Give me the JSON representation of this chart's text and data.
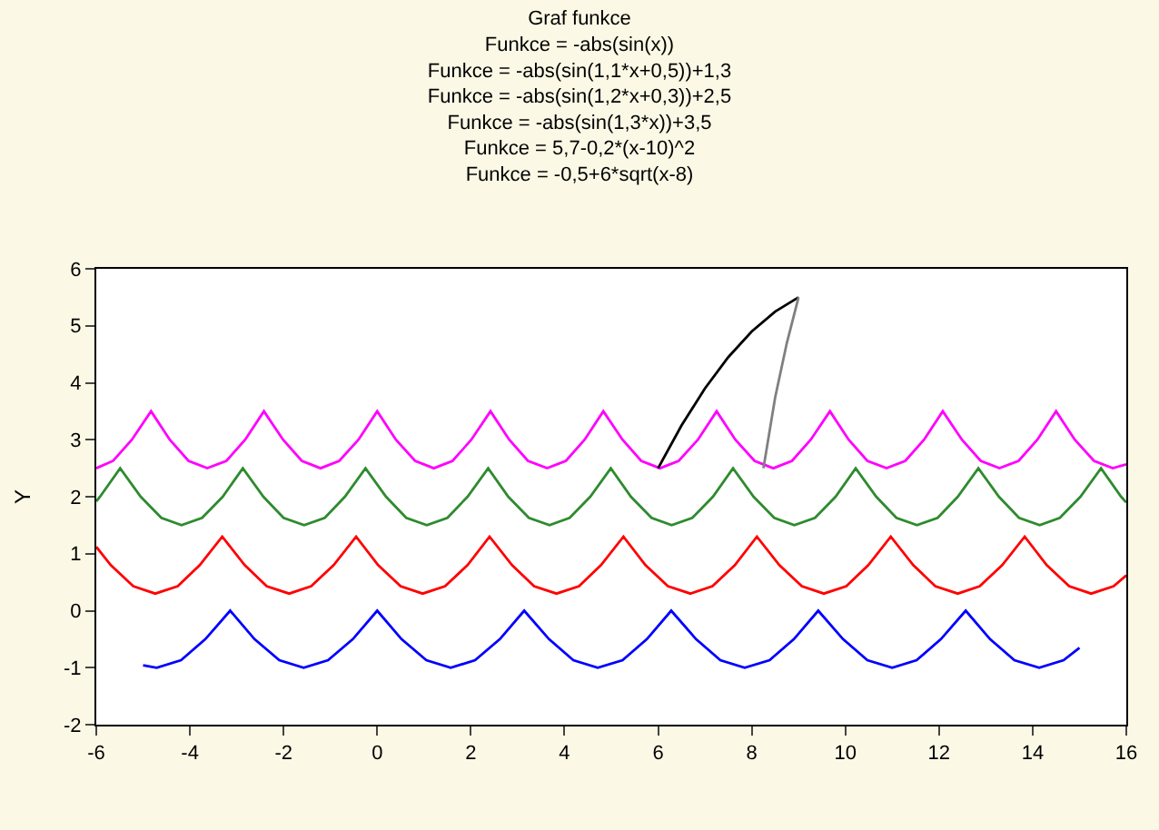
{
  "chart_data": {
    "type": "line",
    "title": "Graf funkce",
    "subtitle": "Funkce = -abs(sin(x))\nFunkce = -abs(sin(1,1*x+0,5))+1,3\nFunkce = -abs(sin(1,2*x+0,3))+2,5\nFunkce = -abs(sin(1,3*x))+3,5\nFunkce = 5,7-0,2*(x-10)^2\nFunkce = -0,5+6*sqrt(x-8)",
    "ylabel": "Y",
    "xlim": [
      -6,
      16
    ],
    "xticks": [
      -6,
      -4,
      -2,
      0,
      2,
      4,
      6,
      8,
      10,
      12,
      14,
      16
    ],
    "ylim": [
      -2,
      6
    ],
    "yticks": [
      -2,
      -1,
      0,
      1,
      2,
      3,
      4,
      5,
      6
    ],
    "marker": "none",
    "line_style": "solid",
    "series": [
      {
        "color": "#0000ff",
        "x": [
          -5,
          -4.71,
          -4.19,
          -3.67,
          -3.14,
          -2.62,
          -2.09,
          -1.57,
          -1.05,
          -0.52,
          0,
          0.52,
          1.05,
          1.57,
          2.09,
          2.62,
          3.14,
          3.67,
          4.19,
          4.71,
          5.24,
          5.76,
          6.28,
          6.81,
          7.33,
          7.85,
          8.38,
          8.9,
          9.42,
          9.95,
          10.47,
          11.0,
          11.52,
          12.04,
          12.57,
          13.09,
          13.61,
          14.14,
          14.66,
          15
        ],
        "values": [
          -0.96,
          -1,
          -0.87,
          -0.5,
          0,
          -0.5,
          -0.87,
          -1,
          -0.87,
          -0.5,
          0,
          -0.5,
          -0.87,
          -1,
          -0.87,
          -0.5,
          0,
          -0.5,
          -0.87,
          -1,
          -0.87,
          -0.5,
          0,
          -0.5,
          -0.87,
          -1,
          -0.87,
          -0.5,
          0,
          -0.5,
          -0.87,
          -1,
          -0.87,
          -0.5,
          0,
          -0.5,
          -0.87,
          -1,
          -0.87,
          -0.65
        ]
      },
      {
        "color": "#ff0000",
        "x": [
          -6,
          -5.69,
          -5.21,
          -4.74,
          -4.26,
          -3.79,
          -3.31,
          -2.83,
          -2.36,
          -1.88,
          -1.41,
          -0.93,
          -0.45,
          0.02,
          0.5,
          0.97,
          1.45,
          1.93,
          2.4,
          2.88,
          3.35,
          3.83,
          4.31,
          4.78,
          5.26,
          5.73,
          6.21,
          6.69,
          7.16,
          7.64,
          8.11,
          8.59,
          9.07,
          9.54,
          10.02,
          10.49,
          10.97,
          11.45,
          11.92,
          12.4,
          12.87,
          13.35,
          13.83,
          14.3,
          14.78,
          15.25,
          15.73,
          16
        ],
        "values": [
          1.12,
          0.8,
          0.43,
          0.3,
          0.43,
          0.8,
          1.3,
          0.8,
          0.43,
          0.3,
          0.43,
          0.8,
          1.3,
          0.8,
          0.43,
          0.3,
          0.43,
          0.8,
          1.3,
          0.8,
          0.43,
          0.3,
          0.43,
          0.8,
          1.3,
          0.8,
          0.43,
          0.3,
          0.43,
          0.8,
          1.3,
          0.8,
          0.43,
          0.3,
          0.43,
          0.8,
          1.3,
          0.8,
          0.43,
          0.3,
          0.43,
          0.8,
          1.3,
          0.8,
          0.43,
          0.3,
          0.43,
          0.62
        ]
      },
      {
        "color": "#2e8b2e",
        "x": [
          -6,
          -5.92,
          -5.49,
          -5.05,
          -4.61,
          -4.18,
          -3.74,
          -3.3,
          -2.87,
          -2.43,
          -2.0,
          -1.56,
          -1.12,
          -0.69,
          -0.25,
          0.19,
          0.62,
          1.06,
          1.5,
          1.93,
          2.37,
          2.8,
          3.24,
          3.68,
          4.11,
          4.55,
          4.99,
          5.42,
          5.86,
          6.29,
          6.73,
          7.17,
          7.6,
          8.04,
          8.48,
          8.91,
          9.35,
          9.79,
          10.22,
          10.66,
          11.09,
          11.53,
          11.97,
          12.4,
          12.84,
          13.28,
          13.71,
          14.15,
          14.58,
          15.02,
          15.46,
          15.89,
          16
        ],
        "values": [
          1.92,
          2.0,
          2.5,
          2.0,
          1.63,
          1.5,
          1.63,
          2.0,
          2.5,
          2.0,
          1.63,
          1.5,
          1.63,
          2.0,
          2.5,
          2.0,
          1.63,
          1.5,
          1.63,
          2.0,
          2.5,
          2.0,
          1.63,
          1.5,
          1.63,
          2.0,
          2.5,
          2.0,
          1.63,
          1.5,
          1.63,
          2.0,
          2.5,
          2.0,
          1.63,
          1.5,
          1.63,
          2.0,
          2.5,
          2.0,
          1.63,
          1.5,
          1.63,
          2.0,
          2.5,
          2.0,
          1.63,
          1.5,
          1.63,
          2.0,
          2.5,
          2.0,
          1.9
        ]
      },
      {
        "color": "#ff00ff",
        "x": [
          -6,
          -5.64,
          -5.24,
          -4.83,
          -4.43,
          -4.03,
          -3.63,
          -3.22,
          -2.82,
          -2.42,
          -2.01,
          -1.61,
          -1.21,
          -0.81,
          -0.4,
          0,
          0.4,
          0.81,
          1.21,
          1.61,
          2.01,
          2.42,
          2.82,
          3.22,
          3.63,
          4.03,
          4.43,
          4.83,
          5.24,
          5.64,
          6.04,
          6.44,
          6.85,
          7.25,
          7.65,
          8.06,
          8.46,
          8.86,
          9.26,
          9.67,
          10.07,
          10.47,
          10.88,
          11.28,
          11.68,
          12.08,
          12.49,
          12.89,
          13.29,
          13.7,
          14.1,
          14.5,
          14.9,
          15.31,
          15.71,
          16
        ],
        "values": [
          2.5,
          2.63,
          3.0,
          3.5,
          3.0,
          2.63,
          2.5,
          2.63,
          3.0,
          3.5,
          3.0,
          2.63,
          2.5,
          2.63,
          3.0,
          3.5,
          3.0,
          2.63,
          2.5,
          2.63,
          3.0,
          3.5,
          3.0,
          2.63,
          2.5,
          2.63,
          3.0,
          3.5,
          3.0,
          2.63,
          2.5,
          2.63,
          3.0,
          3.5,
          3.0,
          2.63,
          2.5,
          2.63,
          3.0,
          3.5,
          3.0,
          2.63,
          2.5,
          2.63,
          3.0,
          3.5,
          3.0,
          2.63,
          2.5,
          2.63,
          3.0,
          3.5,
          3.0,
          2.63,
          2.5,
          2.57
        ]
      },
      {
        "color": "#000000",
        "x": [
          6,
          6.5,
          7,
          7.5,
          8,
          8.5,
          9
        ],
        "values": [
          2.5,
          3.25,
          3.9,
          4.45,
          4.9,
          5.25,
          5.5
        ]
      },
      {
        "color": "#808080",
        "x": [
          8.25,
          8.5,
          8.75,
          9
        ],
        "values": [
          2.5,
          3.74,
          4.7,
          5.5
        ]
      }
    ]
  }
}
